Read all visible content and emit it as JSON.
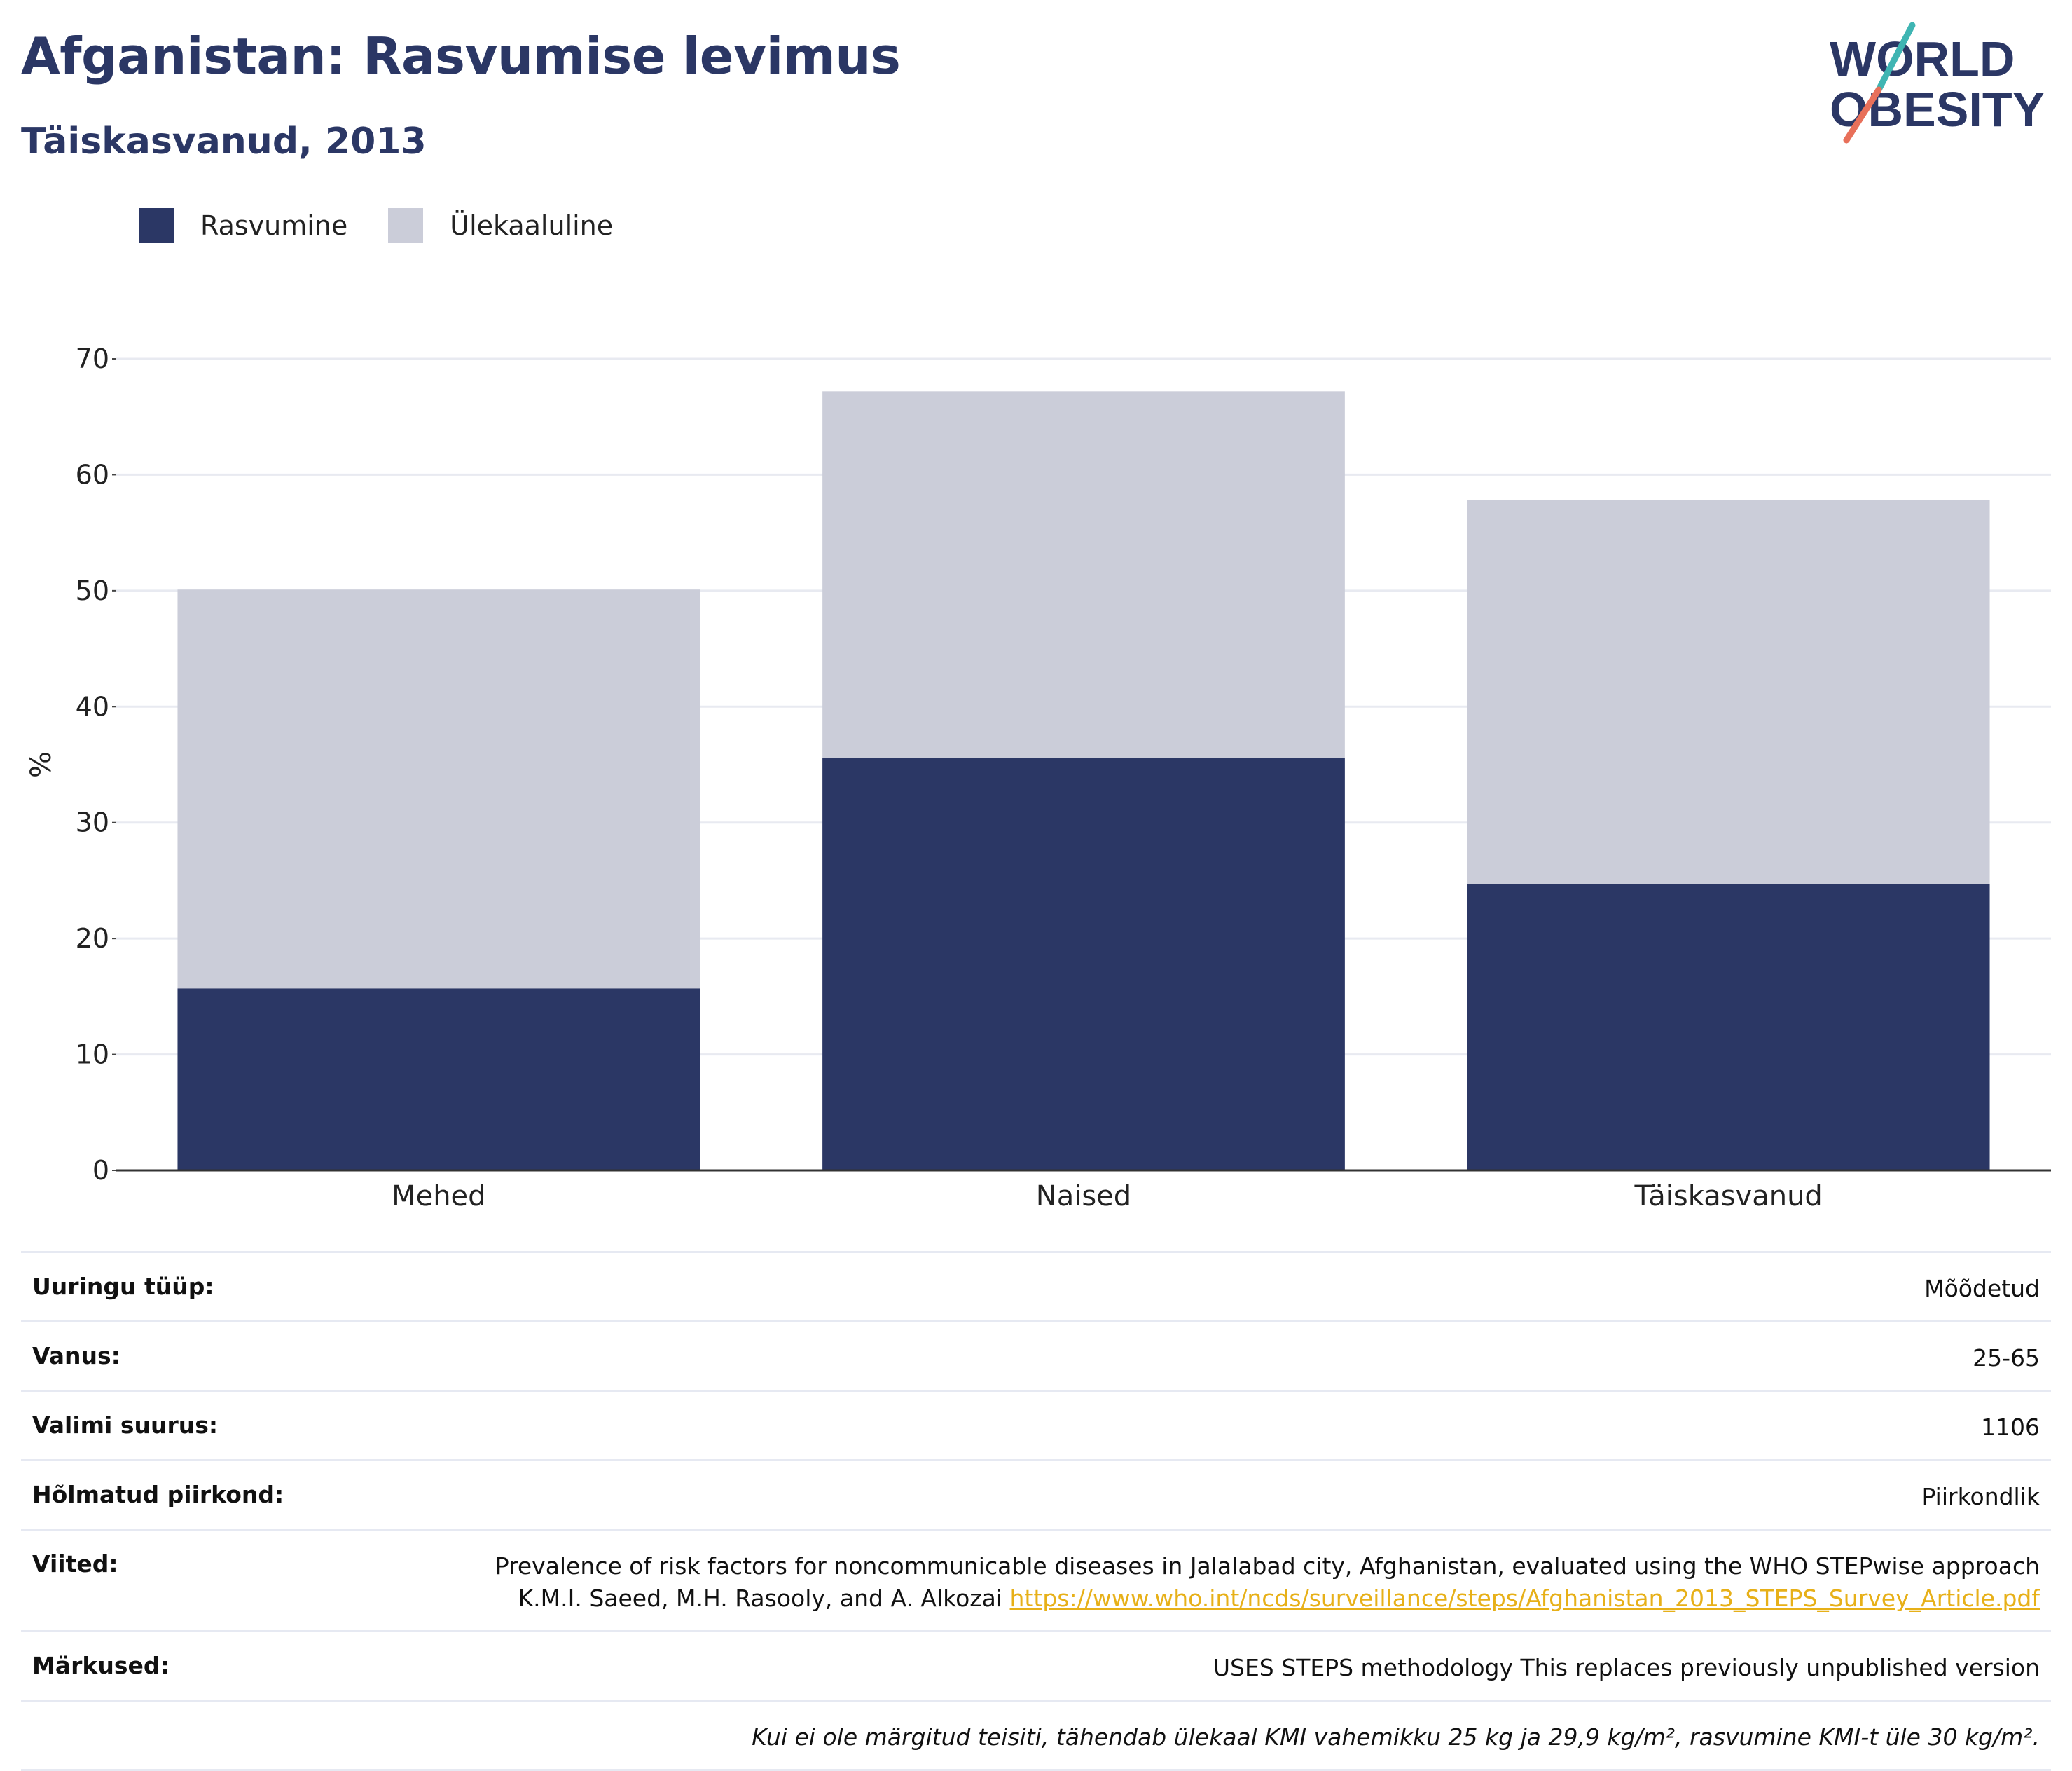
{
  "header": {
    "title": "Afganistan: Rasvumise levimus",
    "subtitle": "Täiskasvanud, 2013"
  },
  "logo": {
    "line1": "WORLD",
    "line2": "OBESITY"
  },
  "legend": [
    {
      "label": "Rasvumine",
      "color": "#2b3765"
    },
    {
      "label": "Ülekaaluline",
      "color": "#cbcdd9"
    }
  ],
  "chart_data": {
    "type": "bar",
    "stacked": true,
    "categories": [
      "Mehed",
      "Naised",
      "Täiskasvanud"
    ],
    "series": [
      {
        "name": "Rasvumine",
        "values": [
          15.7,
          35.6,
          24.7
        ],
        "color": "#2b3765"
      },
      {
        "name": "Ülekaaluline",
        "values": [
          34.4,
          31.6,
          33.1
        ],
        "color": "#cbcdd9"
      }
    ],
    "ylabel": "%",
    "ylim": [
      0,
      70
    ],
    "yticks": [
      0,
      10,
      20,
      30,
      40,
      50,
      60,
      70
    ],
    "grid": true,
    "legend_position": "top-left"
  },
  "meta": [
    {
      "key": "Uuringu tüüp:",
      "value": "Mõõdetud"
    },
    {
      "key": "Vanus:",
      "value": "25-65"
    },
    {
      "key": "Valimi suurus:",
      "value": "1106"
    },
    {
      "key": "Hõlmatud piirkond:",
      "value": "Piirkondlik"
    },
    {
      "key": "Viited:",
      "value_line1": "Prevalence of risk factors for noncommunicable diseases in Jalalabad city, Afghanistan, evaluated using the WHO STEPwise approach",
      "value_line2": "K.M.I. Saeed, M.H. Rasooly, and A. Alkozai",
      "link": "https://www.who.int/ncds/surveillance/steps/Afghanistan_2013_STEPS_Survey_Article.pdf"
    },
    {
      "key": "Märkused:",
      "value": "USES STEPS methodology This replaces previously unpublished version"
    }
  ],
  "footnote": "Kui ei ole märgitud teisiti, tähendab ülekaal KMI vahemikku 25 kg ja 29,9 kg/m², rasvumine KMI-t üle 30 kg/m²."
}
